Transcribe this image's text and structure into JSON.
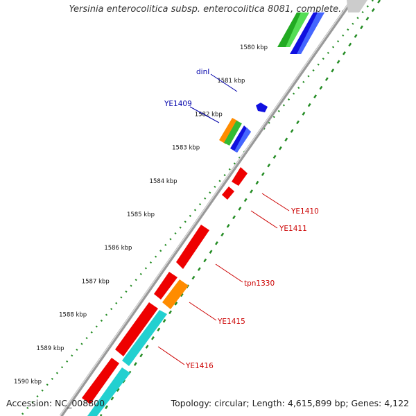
{
  "title": "Yersinia enterocolitica subsp. enterocolitica 8081, complete...",
  "footer": {
    "accession": "Accession: NC_008800",
    "topology": "Topology: circular; Length: 4,615,899 bp; Genes: 4,122"
  },
  "colors": {
    "backbone": "#888888",
    "track_dots": "#228B22",
    "green_feature": "#33bb33",
    "blue_feature": "#1010e0",
    "red_feature": "#ee0000",
    "orange_feature": "#ff8c00",
    "cyan_feature": "#22d0d0",
    "gray_feature": "#cccccc",
    "label_blue": "#0000aa",
    "label_red": "#cc0000",
    "tick_text": "#111111"
  },
  "scale_ticks": [
    "1580 kbp",
    "1581 kbp",
    "1582 kbp",
    "1583 kbp",
    "1584 kbp",
    "1585 kbp",
    "1586 kbp",
    "1587 kbp",
    "1588 kbp",
    "1589 kbp",
    "1590 kbp"
  ],
  "gene_labels": {
    "dinI": "dinI",
    "YE1409": "YE1409",
    "YE1410": "YE1410",
    "YE1411": "YE1411",
    "tpn1330": "tpn1330",
    "YE1415": "YE1415",
    "YE1416": "YE1416"
  }
}
